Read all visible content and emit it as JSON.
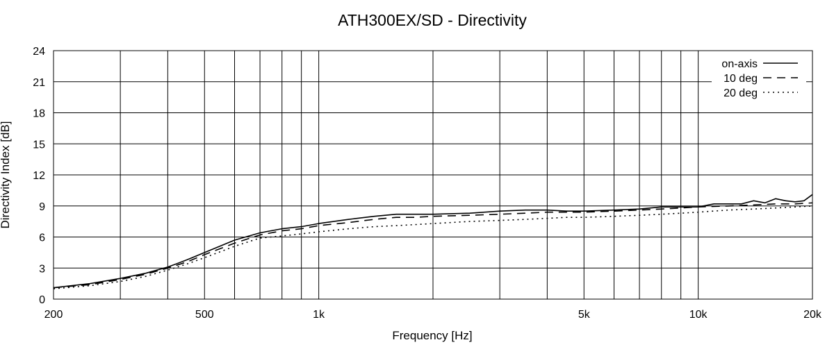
{
  "chart_data": {
    "type": "line",
    "title": "ATH300EX/SD - Directivity",
    "xlabel": "Frequency [Hz]",
    "ylabel": "Directivity Index [dB]",
    "x_scale": "log",
    "xlim": [
      200,
      20000
    ],
    "ylim": [
      0,
      24
    ],
    "grid": true,
    "legend_position": "top-right",
    "x_tick_labels": [
      {
        "value": 200,
        "label": "200"
      },
      {
        "value": 500,
        "label": "500"
      },
      {
        "value": 1000,
        "label": "1k"
      },
      {
        "value": 5000,
        "label": "5k"
      },
      {
        "value": 10000,
        "label": "10k"
      },
      {
        "value": 20000,
        "label": "20k"
      }
    ],
    "y_ticks": [
      0,
      3,
      6,
      9,
      12,
      15,
      18,
      21,
      24
    ],
    "series": [
      {
        "name": "on-axis",
        "style": "solid",
        "x": [
          200,
          250,
          300,
          350,
          400,
          450,
          500,
          600,
          700,
          800,
          900,
          1000,
          1200,
          1400,
          1600,
          1800,
          2000,
          2500,
          3000,
          3500,
          4000,
          4500,
          5000,
          6000,
          7000,
          8000,
          9000,
          10000,
          11000,
          12000,
          13000,
          14000,
          15000,
          16000,
          17000,
          18000,
          19000,
          20000
        ],
        "y": [
          1.1,
          1.5,
          2.0,
          2.5,
          3.1,
          3.8,
          4.5,
          5.7,
          6.4,
          6.8,
          7.0,
          7.3,
          7.7,
          8.0,
          8.2,
          8.2,
          8.2,
          8.3,
          8.5,
          8.6,
          8.6,
          8.5,
          8.5,
          8.6,
          8.7,
          8.9,
          8.9,
          8.9,
          9.2,
          9.2,
          9.2,
          9.5,
          9.3,
          9.7,
          9.5,
          9.4,
          9.5,
          10.1
        ]
      },
      {
        "name": "10 deg",
        "style": "dashed",
        "x": [
          200,
          250,
          300,
          350,
          400,
          450,
          500,
          600,
          700,
          800,
          900,
          1000,
          1200,
          1400,
          1600,
          1800,
          2000,
          2500,
          3000,
          3500,
          4000,
          4500,
          5000,
          6000,
          7000,
          8000,
          9000,
          10000,
          12000,
          14000,
          16000,
          18000,
          20000
        ],
        "y": [
          1.1,
          1.4,
          1.9,
          2.4,
          3.0,
          3.6,
          4.3,
          5.4,
          6.2,
          6.6,
          6.8,
          7.1,
          7.4,
          7.7,
          7.9,
          7.9,
          8.0,
          8.1,
          8.2,
          8.3,
          8.4,
          8.4,
          8.4,
          8.5,
          8.6,
          8.7,
          8.8,
          8.9,
          9.0,
          9.1,
          9.2,
          9.2,
          9.3
        ]
      },
      {
        "name": "20 deg",
        "style": "dotted",
        "x": [
          200,
          250,
          300,
          350,
          400,
          450,
          500,
          600,
          700,
          800,
          900,
          1000,
          1200,
          1400,
          1600,
          1800,
          2000,
          2500,
          3000,
          3500,
          4000,
          4500,
          5000,
          6000,
          7000,
          8000,
          9000,
          10000,
          12000,
          14000,
          16000,
          18000,
          20000
        ],
        "y": [
          1.0,
          1.3,
          1.7,
          2.2,
          2.8,
          3.4,
          4.0,
          5.1,
          5.9,
          6.1,
          6.3,
          6.5,
          6.8,
          7.0,
          7.1,
          7.2,
          7.3,
          7.5,
          7.6,
          7.7,
          7.8,
          7.9,
          7.9,
          8.0,
          8.1,
          8.2,
          8.3,
          8.4,
          8.6,
          8.7,
          8.8,
          8.9,
          9.0
        ]
      }
    ]
  }
}
